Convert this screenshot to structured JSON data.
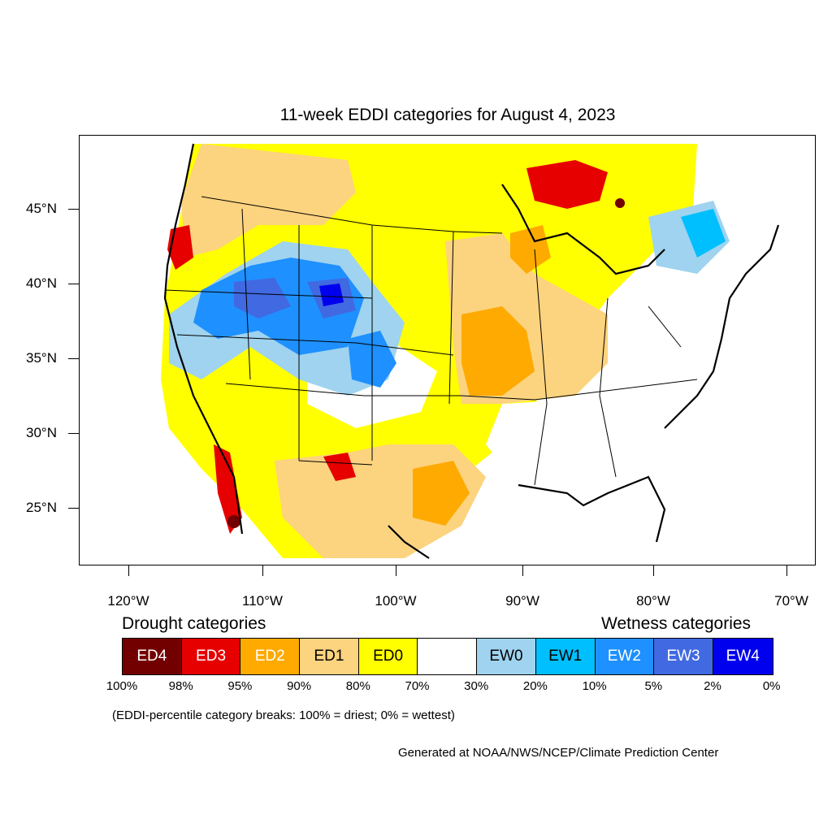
{
  "title": "11-week EDDI categories for August 4, 2023",
  "latitude_labels": [
    "45°N",
    "40°N",
    "35°N",
    "30°N",
    "25°N"
  ],
  "longitude_labels": [
    "120°W",
    "110°W",
    "100°W",
    "90°W",
    "80°W",
    "70°W"
  ],
  "legend": {
    "drought_heading": "Drought categories",
    "wetness_heading": "Wetness categories",
    "categories": [
      {
        "label": "ED4",
        "color": "#730000",
        "text_color": "#ffffff"
      },
      {
        "label": "ED3",
        "color": "#e60000",
        "text_color": "#ffffff"
      },
      {
        "label": "ED2",
        "color": "#ffaa00",
        "text_color": "#ffffff"
      },
      {
        "label": "ED1",
        "color": "#fcd37f",
        "text_color": "#000000"
      },
      {
        "label": "ED0",
        "color": "#ffff00",
        "text_color": "#000000"
      },
      {
        "label": "",
        "color": "#ffffff",
        "text_color": "#000000"
      },
      {
        "label": "EW0",
        "color": "#9fd3ef",
        "text_color": "#000000"
      },
      {
        "label": "EW1",
        "color": "#00bfff",
        "text_color": "#000000"
      },
      {
        "label": "EW2",
        "color": "#1e90ff",
        "text_color": "#ffffff"
      },
      {
        "label": "EW3",
        "color": "#4169e1",
        "text_color": "#ffffff"
      },
      {
        "label": "EW4",
        "color": "#0000ee",
        "text_color": "#ffffff"
      }
    ],
    "breaks": [
      "100%",
      "98%",
      "95%",
      "90%",
      "80%",
      "70%",
      "30%",
      "20%",
      "10%",
      "5%",
      "2%",
      "0%"
    ],
    "note": "(EDDI-percentile category breaks: 100% = driest; 0% = wettest)"
  },
  "credit": "Generated at NOAA/NWS/NCEP/Climate Prediction Center"
}
